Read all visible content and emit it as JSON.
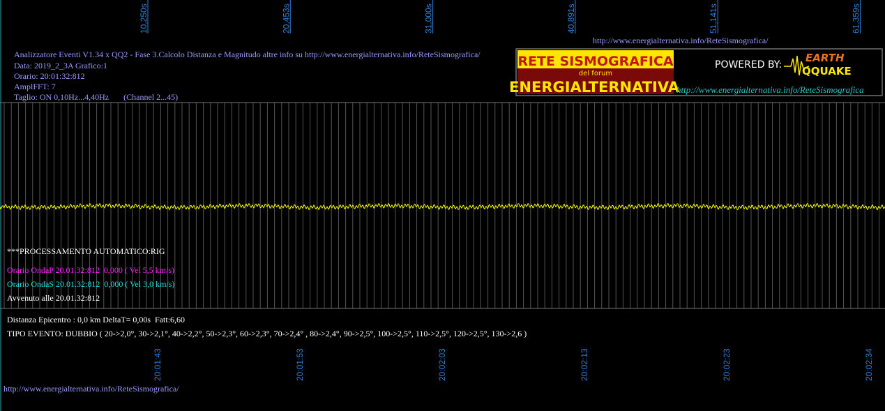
{
  "top_time_labels": [
    "10,250s",
    "20,453s",
    "31,000s",
    "40,891s",
    "51,141s",
    "61,359s"
  ],
  "top_url": "http://www.energialternativa.info/ReteSismografica/",
  "header": {
    "lines": [
      "Analizzatore Eventi V1.34 x QQ2 - Fase 3.Calcolo Distanza e Magnitudo altre info su http://www.energialternativa.info/ReteSismografica/",
      "Data: 2019_2_3A Grafico:1",
      "Orario: 20:01:32:812",
      "AmplFFT: 7",
      "Taglio: ON 0,10Hz...4,40Hz       (Channel 2...45)"
    ]
  },
  "logo": {
    "title": "RETE SISMOGRAFICA",
    "subtitle": "del forum",
    "name": "ENERGIALTERNATIVA",
    "powered": "POWERED BY:",
    "brand_top": "EARTH",
    "brand_bottom": "QQUAKE",
    "url": "http://www.energialternativa.info/ReteSismografica"
  },
  "processing": {
    "title": "***PROCESSAMENTO AUTOMATICO:RIG",
    "wave_p": "Orario OndaP 20.01.32:812  0,000 ( Vel 5,5 km/s)",
    "wave_s": "Orario OndaS 20.01.32:812  0,000 ( Vel 3,0 km/s)",
    "occurred": "Avvenuto alle 20.01.32:812",
    "distance": "Distanza Epicentro : 0,0 km DeltaT= 0,00s  Fatt:6,60",
    "event_type": "TIPO EVENTO: DUBBIO ( 20->2,0°, 30->2,1°, 40->2,2°, 50->2,3°, 60->2,3°, 70->2,4° , 80->2,4°, 90->2,5°, 100->2,5°, 110->2,5°, 120->2,5°, 130->2,6 )"
  },
  "bottom_time_labels": [
    "20:01:43",
    "20:01:53",
    "20:02:03",
    "20:02:13",
    "20:02:23",
    "20:02:34"
  ],
  "bottom_url": "http://www.energialternativa.info/ReteSismografica/"
}
